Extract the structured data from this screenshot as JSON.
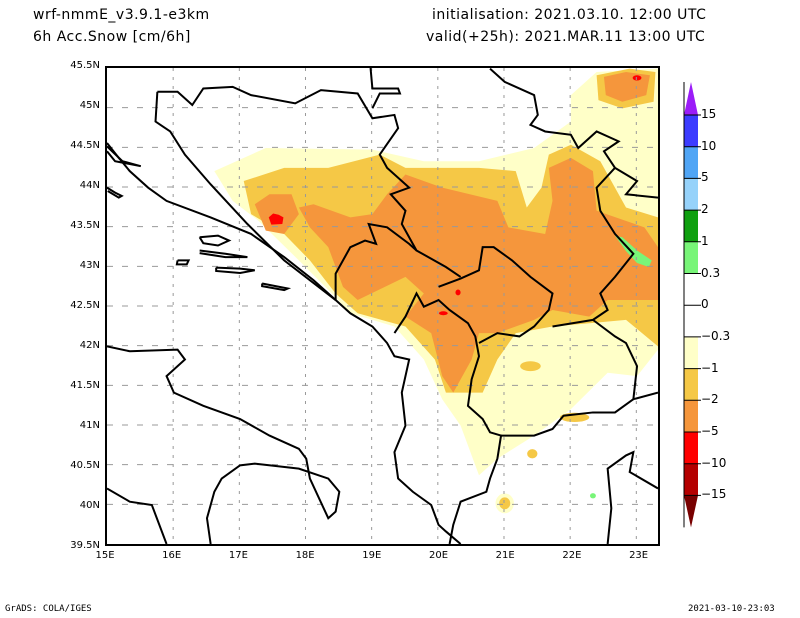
{
  "header": {
    "model": "wrf-nmmE_v3.9.1-e3km",
    "field": "6h Acc.Snow [cm/6h]",
    "init": "initialisation: 2021.03.10.  12:00 UTC",
    "valid": "valid(+25h): 2021.MAR.11 13:00 UTC"
  },
  "axes": {
    "lat_labels": [
      "45.5N",
      "45N",
      "44.5N",
      "44N",
      "43.5N",
      "43N",
      "42.5N",
      "42N",
      "41.5N",
      "41N",
      "40.5N",
      "40N",
      "39.5N"
    ],
    "lon_labels": [
      "15E",
      "16E",
      "17E",
      "18E",
      "19E",
      "20E",
      "21E",
      "22E",
      "23E"
    ]
  },
  "legend": {
    "labels": [
      "15",
      "10",
      "5",
      "2",
      "1",
      "0.3",
      "0",
      "−0.3",
      "−1",
      "−2",
      "−5",
      "−10",
      "−15"
    ],
    "colors": [
      "#9b1cf8",
      "#3c3cff",
      "#50a5f5",
      "#96d2fa",
      "#0fa00f",
      "#78f578",
      "#ffffff",
      "#ffffff",
      "#ffffc8",
      "#f5c846",
      "#f5963c",
      "#ff0000",
      "#b40000",
      "#780000"
    ]
  },
  "field_colors": {
    "pale": "#ffffc8",
    "yellow": "#f5c846",
    "orange": "#f5963c",
    "red": "#ff0000",
    "green": "#78f578"
  },
  "footer": {
    "left": "GrADS: COLA/IGES",
    "right": "2021-03-10-23:03"
  }
}
